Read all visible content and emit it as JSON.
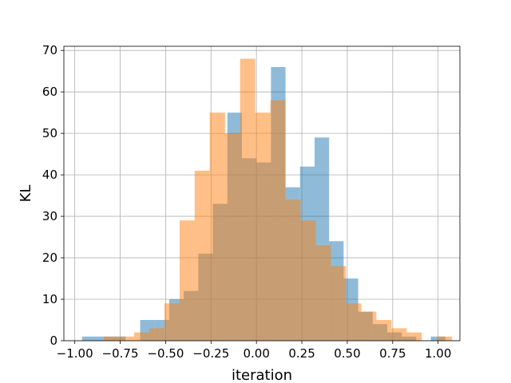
{
  "chart_data": {
    "type": "bar",
    "xlabel": "iteration",
    "ylabel": "KL",
    "xlim": [
      -1.06,
      1.12
    ],
    "ylim": [
      0,
      71
    ],
    "grid": true,
    "xticks": [
      -1.0,
      -0.75,
      -0.5,
      -0.25,
      0.0,
      0.25,
      0.5,
      0.75,
      1.0
    ],
    "xtick_labels": [
      "−1.00",
      "−0.75",
      "−0.50",
      "−0.25",
      "0.00",
      "0.25",
      "0.50",
      "0.75",
      "1.00"
    ],
    "yticks": [
      0,
      10,
      20,
      30,
      40,
      50,
      60,
      70
    ],
    "ytick_labels": [
      "0",
      "10",
      "20",
      "30",
      "40",
      "50",
      "60",
      "70"
    ],
    "series": [
      {
        "color": "#1f77b4",
        "opacity": 0.5,
        "bin_edges": [
          -0.96,
          -0.88,
          -0.8,
          -0.72,
          -0.64,
          -0.56,
          -0.48,
          -0.4,
          -0.32,
          -0.24,
          -0.16,
          -0.08,
          0.0,
          0.08,
          0.16,
          0.24,
          0.32,
          0.4,
          0.48,
          0.56,
          0.64,
          0.72,
          0.8,
          0.88,
          0.96,
          1.04
        ],
        "counts": [
          1,
          1,
          1,
          0,
          5,
          5,
          10,
          12,
          21,
          33,
          55,
          44,
          43,
          66,
          37,
          42,
          49,
          24,
          15,
          7,
          4,
          2,
          1,
          0,
          1
        ]
      },
      {
        "color": "#ff7f0e",
        "opacity": 0.5,
        "bin_edges": [
          -0.84,
          -0.757,
          -0.673,
          -0.59,
          -0.507,
          -0.423,
          -0.34,
          -0.257,
          -0.173,
          -0.09,
          -0.007,
          0.077,
          0.16,
          0.243,
          0.327,
          0.41,
          0.493,
          0.577,
          0.66,
          0.743,
          0.827,
          0.91,
          0.993,
          1.077
        ],
        "counts": [
          1,
          1,
          2,
          3,
          9,
          29,
          41,
          55,
          50,
          68,
          55,
          58,
          34,
          29,
          23,
          18,
          9,
          7,
          5,
          3,
          2,
          0,
          1
        ]
      }
    ]
  }
}
